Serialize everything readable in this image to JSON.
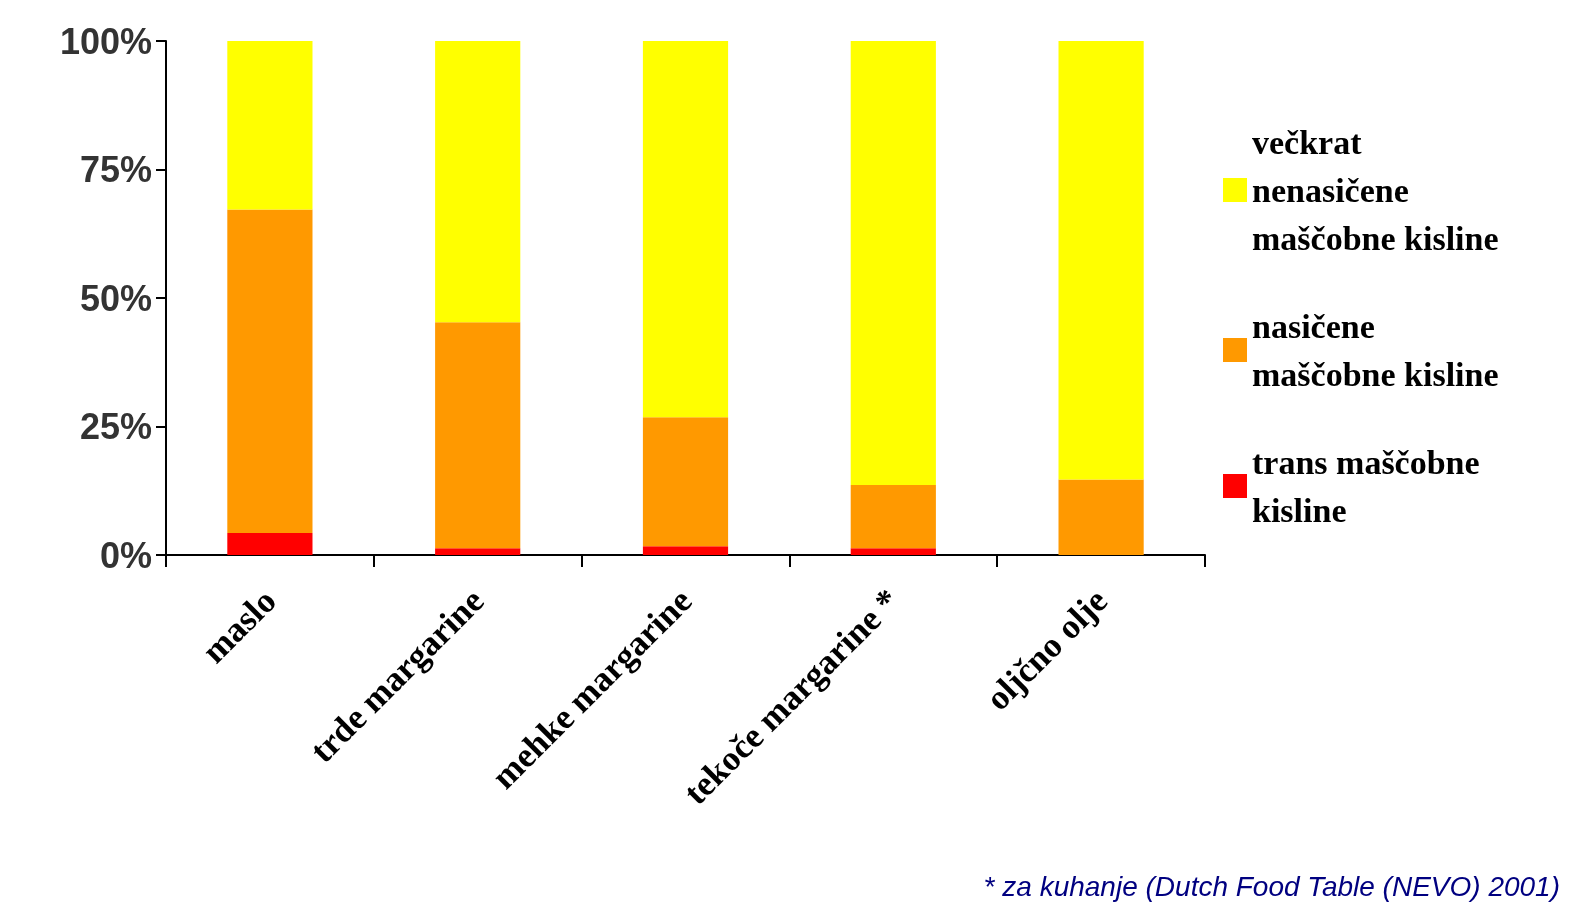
{
  "chart_data": {
    "type": "bar",
    "stacked": true,
    "categories": [
      "maslo",
      "trde margarine",
      "mehke margarine",
      "tekoče margarine *",
      "oljčno olje"
    ],
    "series": [
      {
        "name": "trans maščobne kisline",
        "color": "#ff0000",
        "values": [
          4.3,
          1.3,
          1.7,
          1.3,
          0
        ]
      },
      {
        "name": "nasičene maščobne kisline",
        "color": "#ff9900",
        "values": [
          62.9,
          44,
          25.1,
          12.3,
          14.7
        ]
      },
      {
        "name": "večkrat nenasičene maščobne kisline",
        "color": "#ffff00",
        "values": [
          32.8,
          54.7,
          73.2,
          86.4,
          85.3
        ]
      }
    ],
    "ylim": [
      0,
      100
    ],
    "yticks": [
      {
        "value": 0,
        "label": "0%"
      },
      {
        "value": 25,
        "label": "25%"
      },
      {
        "value": 50,
        "label": "50%"
      },
      {
        "value": 75,
        "label": "75%"
      },
      {
        "value": 100,
        "label": "100%"
      }
    ],
    "grid": false,
    "legend": "right",
    "annotations": [
      "* za kuhanje (Dutch Food Table (NEVO) 2001)"
    ]
  }
}
